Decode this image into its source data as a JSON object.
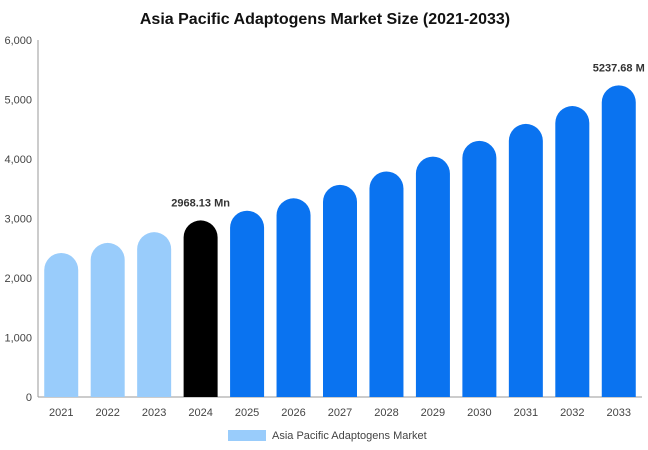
{
  "chart_data": {
    "type": "bar",
    "title": "Asia Pacific Adaptogens Market Size (2021-2033)",
    "categories": [
      "2021",
      "2022",
      "2023",
      "2024",
      "2025",
      "2026",
      "2027",
      "2028",
      "2029",
      "2030",
      "2031",
      "2032",
      "2033"
    ],
    "series": [
      {
        "name": "Asia Pacific Adaptogens Market",
        "values": [
          2420,
          2590,
          2770,
          2968.13,
          3130,
          3340,
          3565,
          3790,
          4040,
          4305,
          4590,
          4890,
          5237.68
        ]
      }
    ],
    "ylim": [
      0,
      6000
    ],
    "yticks": [
      "0",
      "1,000",
      "2,000",
      "3,000",
      "4,000",
      "5,000",
      "6,000"
    ],
    "ytick_values": [
      0,
      1000,
      2000,
      3000,
      4000,
      5000,
      6000
    ],
    "grid": false,
    "legend_position": "bottom",
    "data_labels": [
      {
        "category": "2024",
        "text": "2968.13 Mn"
      },
      {
        "category": "2033",
        "text": "5237.68 M"
      }
    ],
    "colors": {
      "historical": "#99ccfb",
      "base_year": "#000000",
      "forecast": "#0a73f0",
      "legend_swatch": "#99ccfb",
      "axis": "#999999"
    },
    "color_groups": {
      "historical": [
        "2021",
        "2022",
        "2023"
      ],
      "base_year": [
        "2024"
      ],
      "forecast": [
        "2025",
        "2026",
        "2027",
        "2028",
        "2029",
        "2030",
        "2031",
        "2032",
        "2033"
      ]
    }
  }
}
